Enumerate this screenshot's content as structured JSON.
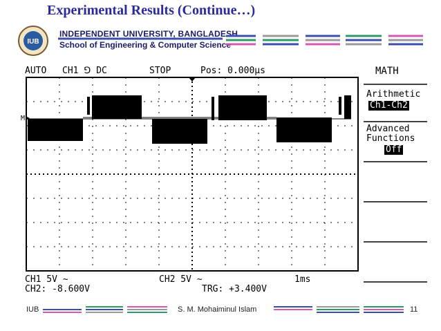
{
  "slide": {
    "title": "Experimental Results (Continue…)"
  },
  "institution": {
    "line1": "INDEPENDENT UNIVERSITY, BANGLADESH",
    "line2": "School of Engineering & Computer Science",
    "logo_text": "IUB"
  },
  "scope": {
    "mode": "AUTO",
    "channel_trigger": "CH1 ⅁ DC",
    "run_state": "STOP",
    "position": "Pos: 0.000µs",
    "trigger_marker": "M",
    "menu_title": "MATH",
    "arith_label": "Arithmetic",
    "arith_value": "Ch1-Ch2",
    "adv_label1": "Advanced",
    "adv_label2": "Functions",
    "adv_value": "Off",
    "ch1_scale": "CH1 5V ∼",
    "ch2_scale": "CH2 5V ∼",
    "timebase": "1ms",
    "ch2_reading": "CH2: -8.600V",
    "trigger_level": "TRG: +3.400V"
  },
  "footer": {
    "left": "IUB",
    "center": "S. M. Mohaiminul Islam",
    "page": "11"
  },
  "colors": {
    "title": "#2a2a9c",
    "navy": "#1b1b6a",
    "line_blue": "#3b4fa8",
    "line_pink": "#d45ab0",
    "line_green": "#2e9a6a",
    "line_gray": "#9a9a9a"
  }
}
